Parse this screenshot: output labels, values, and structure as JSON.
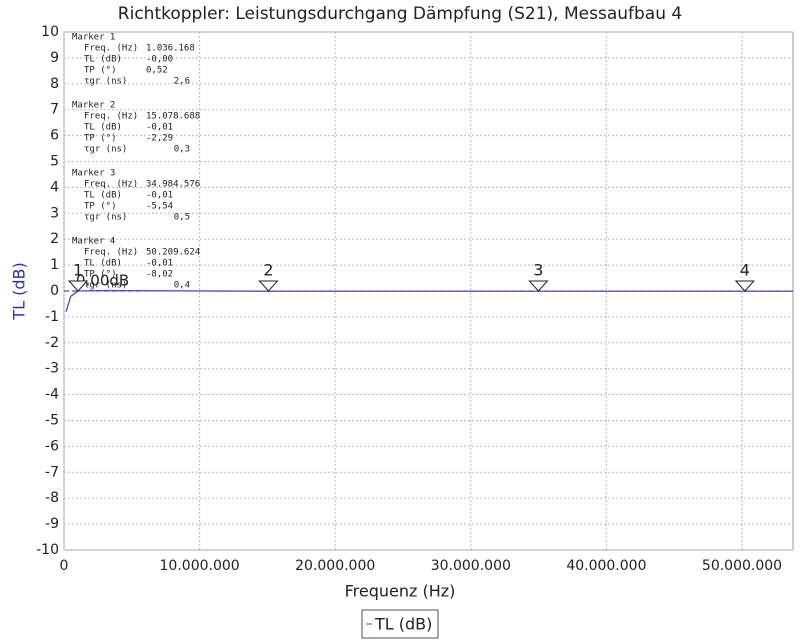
{
  "chart_data": {
    "type": "line",
    "title": "Richtkoppler: Leistungsdurchgang Dämpfung (S21), Messaufbau 4",
    "x_label": "Frequenz (Hz)",
    "y_label": "TL (dB)",
    "xlim": [
      0,
      53760000
    ],
    "ylim": [
      -10,
      10
    ],
    "xticks": [
      0,
      {
        "value": 10000000,
        "label": "10.000.000"
      },
      {
        "value": 20000000,
        "label": "20.000.000"
      },
      {
        "value": 30000000,
        "label": "30.000.000"
      },
      {
        "value": 40000000,
        "label": "40.000.000"
      },
      {
        "value": 50000000,
        "label": "50.000.000"
      }
    ],
    "yticks": [
      10,
      9,
      8,
      7,
      6,
      5,
      4,
      3,
      2,
      1,
      0,
      -1,
      -2,
      -3,
      -4,
      -5,
      -6,
      -7,
      -8,
      -9,
      -10
    ],
    "grid": true,
    "series": [
      {
        "name": "TL (dB)",
        "color": "#4a4ac8",
        "x": [
          150000,
          500000,
          1036168,
          3000000,
          15078688,
          34984576,
          50209624,
          53760000
        ],
        "values": [
          -0.8,
          -0.2,
          0,
          0.02,
          -0.01,
          -0.01,
          -0.01,
          -0.01
        ]
      }
    ],
    "reference_line": {
      "value": 0,
      "label": "0.00dB",
      "color": "#2a2ad0"
    },
    "markers": [
      {
        "name": "1",
        "x": 1036168,
        "title": "Marker 1",
        "rows": [
          {
            "label": "Freq. (Hz)",
            "value": "1.036.168"
          },
          {
            "label": "TL (dB)",
            "value": "-0,00"
          },
          {
            "label": "TP (°)",
            "value": "0,52"
          },
          {
            "label": "τgr (ns)",
            "value": "2,6"
          }
        ]
      },
      {
        "name": "2",
        "x": 15078688,
        "title": "Marker 2",
        "rows": [
          {
            "label": "Freq. (Hz)",
            "value": "15.078.688"
          },
          {
            "label": "TL (dB)",
            "value": "-0,01"
          },
          {
            "label": "TP (°)",
            "value": "-2,29"
          },
          {
            "label": "τgr (ns)",
            "value": "0,3"
          }
        ]
      },
      {
        "name": "3",
        "x": 34984576,
        "title": "Marker 3",
        "rows": [
          {
            "label": "Freq. (Hz)",
            "value": "34.984.576"
          },
          {
            "label": "TL (dB)",
            "value": "-0,01"
          },
          {
            "label": "TP (°)",
            "value": "-5,54"
          },
          {
            "label": "τgr (ns)",
            "value": "0,5"
          }
        ]
      },
      {
        "name": "4",
        "x": 50209624,
        "title": "Marker 4",
        "rows": [
          {
            "label": "Freq. (Hz)",
            "value": "50.209.624"
          },
          {
            "label": "TL (dB)",
            "value": "-0,01"
          },
          {
            "label": "TP (°)",
            "value": "-8,02"
          },
          {
            "label": "τgr (ns)",
            "value": "0,4"
          }
        ]
      }
    ]
  }
}
